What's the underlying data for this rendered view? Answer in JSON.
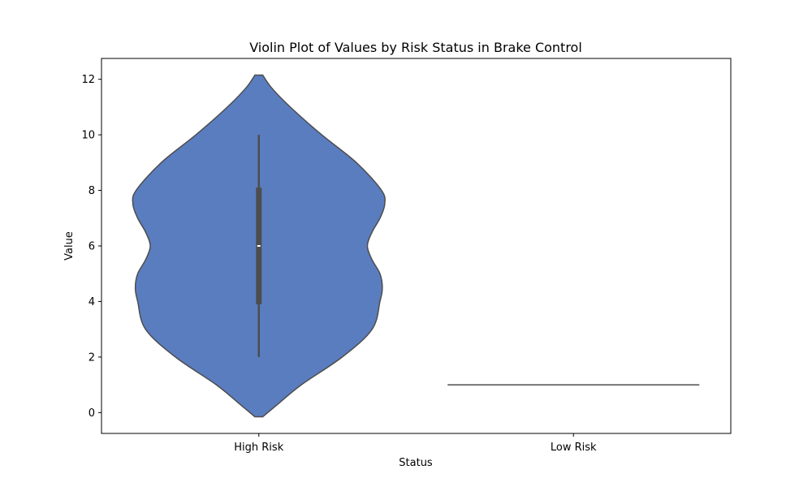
{
  "chart_data": {
    "type": "violin",
    "title": "Violin Plot of Values by Risk Status in Brake Control",
    "xlabel": "Status",
    "ylabel": "Value",
    "categories": [
      "High Risk",
      "Low Risk"
    ],
    "ylim": [
      -0.75,
      12.75
    ],
    "yticks": [
      0,
      2,
      4,
      6,
      8,
      10,
      12
    ],
    "grid": false,
    "fill_color": "#5A7DC0",
    "edge_color": "#4D4D4D",
    "box_color": "#4D4D4D",
    "violins": [
      {
        "category": "High Risk",
        "min": 2,
        "q1": 3.9,
        "median": 6,
        "q3": 8.1,
        "max": 10,
        "density_y": [
          -0.15,
          0.3,
          1.0,
          2.0,
          3.0,
          4.0,
          4.5,
          5.0,
          5.5,
          6.0,
          6.5,
          7.0,
          7.5,
          8.0,
          9.0,
          10.0,
          11.0,
          11.7,
          12.15
        ],
        "density_half_width": [
          0.025,
          0.12,
          0.27,
          0.53,
          0.72,
          0.77,
          0.785,
          0.77,
          0.72,
          0.69,
          0.72,
          0.77,
          0.8,
          0.78,
          0.62,
          0.4,
          0.2,
          0.08,
          0.025
        ]
      },
      {
        "category": "Low Risk",
        "constant_value": 1,
        "half_width": 0.8
      }
    ]
  }
}
